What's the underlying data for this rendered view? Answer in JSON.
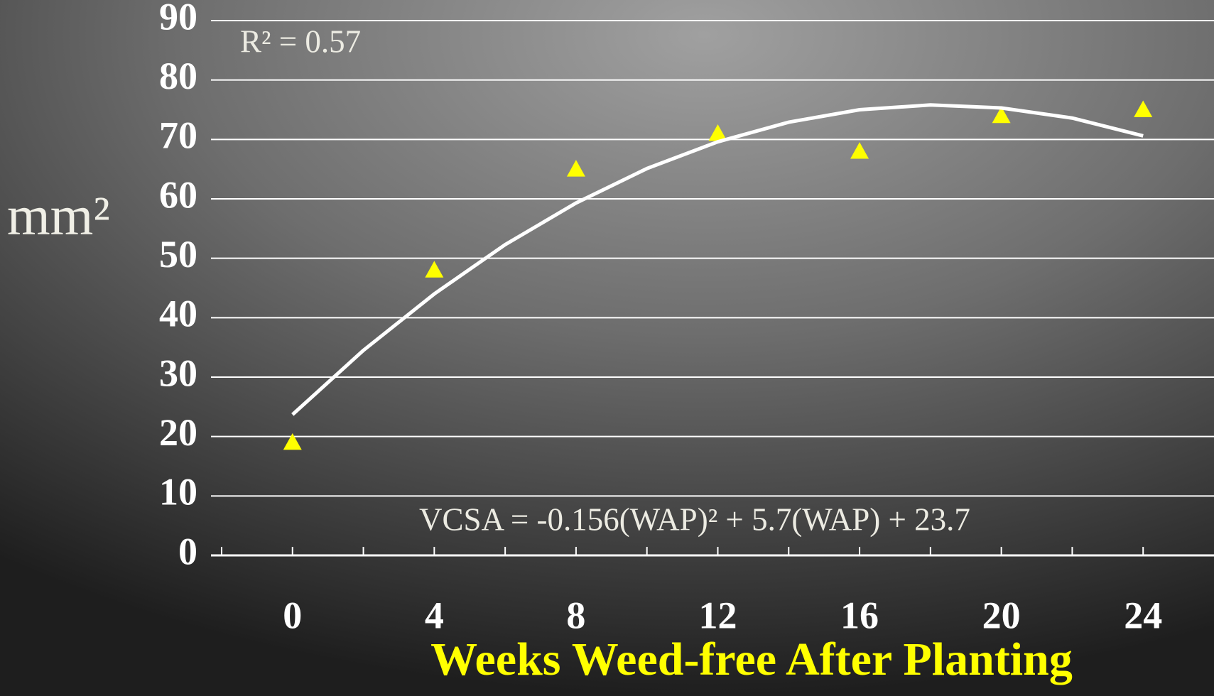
{
  "chart_data": {
    "type": "scatter",
    "xlabel": "Weeks Weed-free After Planting",
    "ylabel": "mm²",
    "annotations": [
      "R² = 0.57",
      "VCSA = -0.156(WAP)² + 5.7(WAP) + 23.7"
    ],
    "series": [
      {
        "color": "#ffff00",
        "marker": "triangle",
        "x": [
          0,
          4,
          8,
          12,
          16,
          20,
          24
        ],
        "values": [
          19,
          48,
          65,
          71,
          68,
          74,
          75
        ]
      },
      {
        "color": "#ffffff",
        "marker": "line",
        "x": [
          0,
          2,
          4,
          6,
          8,
          10,
          12,
          14,
          16,
          18,
          20,
          22,
          24
        ],
        "values": [
          23.7,
          34.5,
          44.0,
          52.3,
          59.3,
          65.1,
          69.6,
          72.9,
          75.0,
          75.8,
          75.3,
          73.6,
          70.6
        ]
      }
    ],
    "xlim": [
      -2.3,
      26
    ],
    "xticks": [
      0,
      4,
      8,
      12,
      16,
      20,
      24
    ],
    "xticks_minor": [
      -2,
      0,
      2,
      4,
      6,
      8,
      10,
      12,
      14,
      16,
      18,
      20,
      22,
      24
    ],
    "ylim": [
      0,
      90
    ],
    "yticks": [
      0,
      10,
      20,
      30,
      40,
      50,
      60,
      70,
      80,
      90
    ],
    "grid": true
  }
}
